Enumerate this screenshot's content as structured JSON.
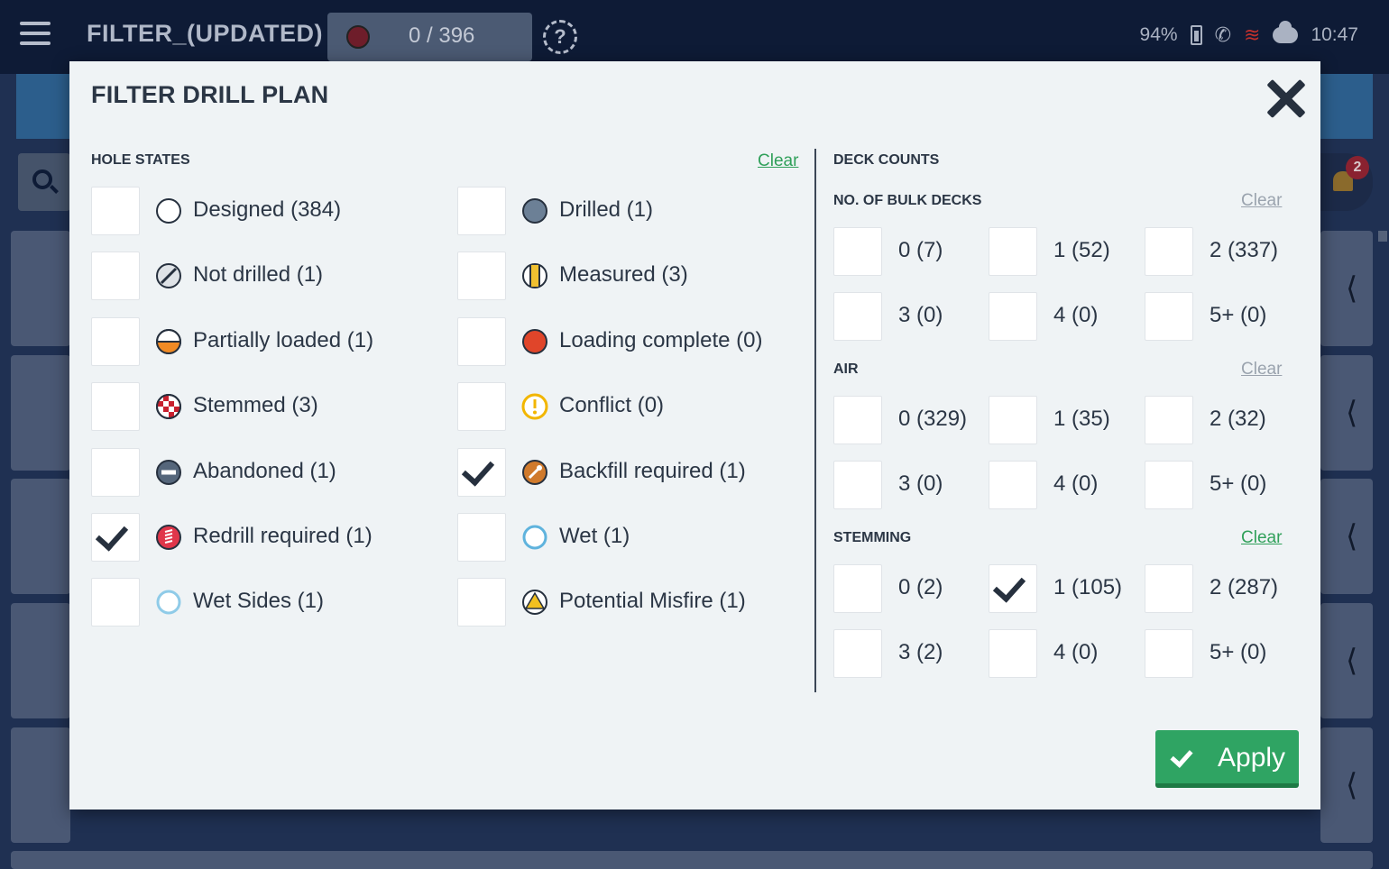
{
  "app": {
    "title": "FILTER_(UPDATED)",
    "counter": "0 / 396",
    "help_icon": "question-circle-icon",
    "status": {
      "battery": "94%",
      "time": "10:47",
      "wifi_color": "#c0302c"
    },
    "notification_count": "2"
  },
  "modal": {
    "title": "FILTER DRILL PLAN",
    "hole_states": {
      "heading": "HOLE STATES",
      "clear_label": "Clear",
      "options": [
        {
          "label": "Designed (384)",
          "icon": "designed-icon",
          "checked": false
        },
        {
          "label": "Drilled (1)",
          "icon": "drilled-icon",
          "checked": false
        },
        {
          "label": "Not drilled (1)",
          "icon": "not-drilled-icon",
          "checked": false
        },
        {
          "label": "Measured (3)",
          "icon": "measured-icon",
          "checked": false
        },
        {
          "label": "Partially loaded (1)",
          "icon": "partially-loaded-icon",
          "checked": false
        },
        {
          "label": "Loading complete (0)",
          "icon": "loading-complete-icon",
          "checked": false
        },
        {
          "label": "Stemmed (3)",
          "icon": "stemmed-icon",
          "checked": false
        },
        {
          "label": "Conflict (0)",
          "icon": "conflict-icon",
          "checked": false
        },
        {
          "label": "Abandoned (1)",
          "icon": "abandoned-icon",
          "checked": false
        },
        {
          "label": "Backfill required (1)",
          "icon": "backfill-required-icon",
          "checked": true
        },
        {
          "label": "Redrill required (1)",
          "icon": "redrill-required-icon",
          "checked": true
        },
        {
          "label": "Wet (1)",
          "icon": "wet-icon",
          "checked": false
        },
        {
          "label": "Wet Sides (1)",
          "icon": "wet-sides-icon",
          "checked": false
        },
        {
          "label": "Potential Misfire (1)",
          "icon": "potential-misfire-icon",
          "checked": false
        }
      ]
    },
    "deck_counts": {
      "heading": "DECK COUNTS",
      "groups": [
        {
          "heading": "NO. OF BULK DECKS",
          "clear_label": "Clear",
          "clear_active": false,
          "options": [
            {
              "label": "0 (7)",
              "checked": false
            },
            {
              "label": "1 (52)",
              "checked": false
            },
            {
              "label": "2 (337)",
              "checked": false
            },
            {
              "label": "3 (0)",
              "checked": false
            },
            {
              "label": "4 (0)",
              "checked": false
            },
            {
              "label": "5+ (0)",
              "checked": false
            }
          ]
        },
        {
          "heading": "AIR",
          "clear_label": "Clear",
          "clear_active": false,
          "options": [
            {
              "label": "0 (329)",
              "checked": false
            },
            {
              "label": "1 (35)",
              "checked": false
            },
            {
              "label": "2 (32)",
              "checked": false
            },
            {
              "label": "3 (0)",
              "checked": false
            },
            {
              "label": "4 (0)",
              "checked": false
            },
            {
              "label": "5+ (0)",
              "checked": false
            }
          ]
        },
        {
          "heading": "STEMMING",
          "clear_label": "Clear",
          "clear_active": true,
          "options": [
            {
              "label": "0 (2)",
              "checked": false
            },
            {
              "label": "1 (105)",
              "checked": true
            },
            {
              "label": "2 (287)",
              "checked": false
            },
            {
              "label": "3 (2)",
              "checked": false
            },
            {
              "label": "4 (0)",
              "checked": false
            },
            {
              "label": "5+ (0)",
              "checked": false
            }
          ]
        }
      ]
    },
    "apply_label": "Apply"
  },
  "colors": {
    "accent_green": "#2fa463",
    "clear_active": "#30a05a",
    "clear_inactive": "#9aa3ae",
    "text_dark": "#2b3645"
  }
}
